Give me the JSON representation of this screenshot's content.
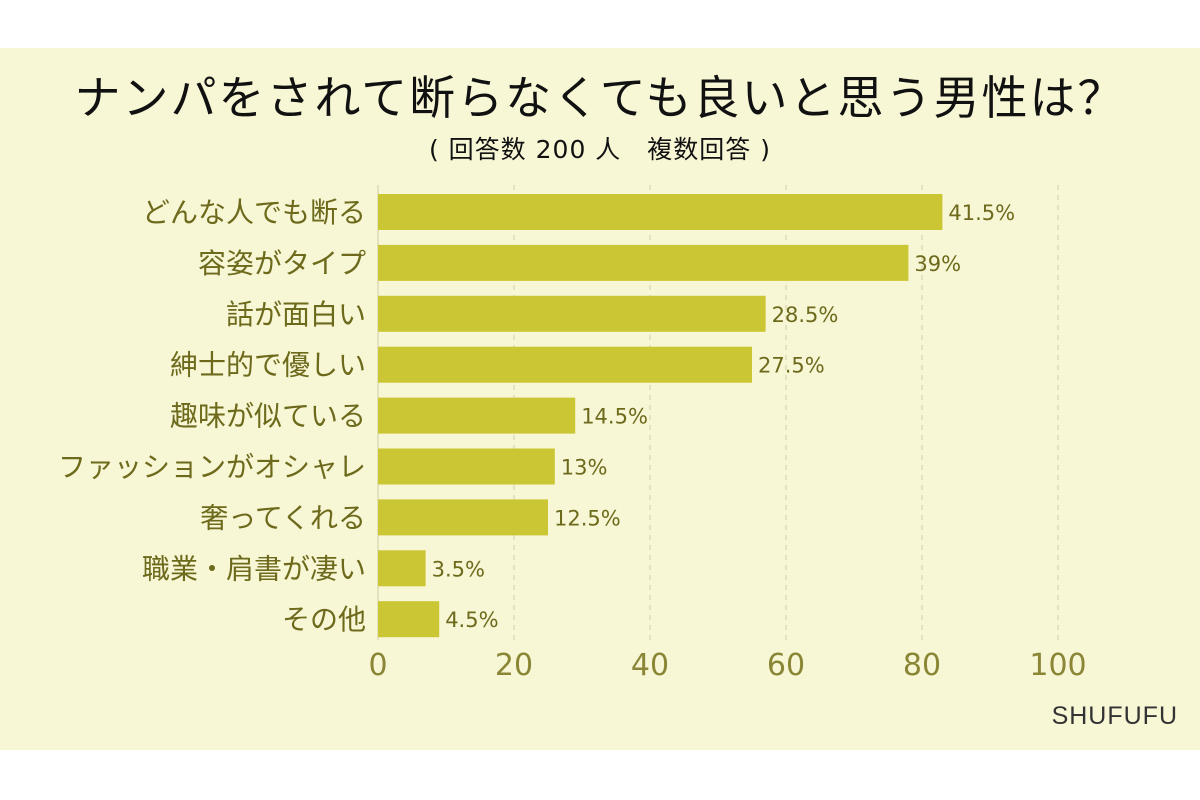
{
  "title": "ナンパをされて断らなくても良いと思う男性は？",
  "subtitle": "( 回答数 200 人　複数回答 )",
  "credit": "SHUFUFU",
  "colors": {
    "background": "#f7f6d5",
    "bar": "#cbc633",
    "category_text": "#6d6a1c",
    "value_text": "#6d6a1c",
    "tick_text": "#8a8636",
    "grid": "#d6d4b0"
  },
  "chart_data": {
    "type": "bar",
    "orientation": "horizontal",
    "categories": [
      "どんな人でも断る",
      "容姿がタイプ",
      "話が面白い",
      "紳士的で優しい",
      "趣味が似ている",
      "ファッションがオシャレ",
      "奢ってくれる",
      "職業・肩書が凄い",
      "その他"
    ],
    "values": [
      41.5,
      39,
      28.5,
      27.5,
      14.5,
      13,
      12.5,
      3.5,
      4.5
    ],
    "value_labels": [
      "41.5%",
      "39%",
      "28.5%",
      "27.5%",
      "14.5%",
      "13%",
      "12.5%",
      "3.5%",
      "4.5%"
    ],
    "xticks": [
      0,
      20,
      40,
      60,
      80,
      100
    ],
    "xlim": [
      0,
      100
    ],
    "bar_scale": 2,
    "grid": "vertical-dashed"
  }
}
